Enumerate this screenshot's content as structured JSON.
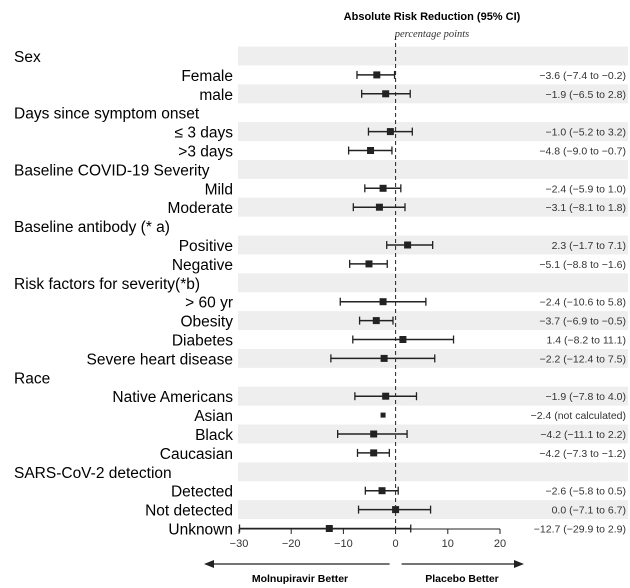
{
  "chart_data": {
    "type": "forest",
    "title": "Absolute Risk Reduction (95% CI)",
    "subtitle": "percentage points",
    "xlim": [
      -30,
      20
    ],
    "xticks": [
      -30,
      -20,
      -10,
      0,
      10,
      20
    ],
    "reference_line": 0,
    "footer_left": "Molnupiravir Better",
    "footer_right": "Placebo Better",
    "rows": [
      {
        "label": "Sex",
        "header": true
      },
      {
        "label": "Female",
        "est": -3.6,
        "lo": -7.4,
        "hi": -0.2,
        "ci_text": "−3.6 (−7.4 to −0.2)"
      },
      {
        "label": "male",
        "est": -1.9,
        "lo": -6.5,
        "hi": 2.8,
        "ci_text": "−1.9 (−6.5 to 2.8)"
      },
      {
        "label": "Days since symptom onset",
        "header": true
      },
      {
        "label": "≤ 3 days",
        "est": -1.0,
        "lo": -5.2,
        "hi": 3.2,
        "ci_text": "−1.0 (−5.2 to 3.2)"
      },
      {
        "label": ">3 days",
        "est": -4.8,
        "lo": -9.0,
        "hi": -0.7,
        "ci_text": "−4.8 (−9.0 to −0.7)"
      },
      {
        "label": "Baseline COVID-19 Severity",
        "header": true
      },
      {
        "label": "Mild",
        "est": -2.4,
        "lo": -5.9,
        "hi": 1.0,
        "ci_text": "−2.4 (−5.9 to 1.0)"
      },
      {
        "label": "Moderate",
        "est": -3.1,
        "lo": -8.1,
        "hi": 1.8,
        "ci_text": "−3.1 (−8.1 to 1.8)"
      },
      {
        "label": "Baseline antibody (* a)",
        "header": true
      },
      {
        "label": "Positive",
        "est": 2.3,
        "lo": -1.7,
        "hi": 7.1,
        "ci_text": "2.3 (−1.7 to 7.1)"
      },
      {
        "label": "Negative",
        "est": -5.1,
        "lo": -8.8,
        "hi": -1.6,
        "ci_text": "−5.1 (−8.8 to −1.6)"
      },
      {
        "label": "Risk factors for severity(*b)",
        "header": true
      },
      {
        "label": "> 60 yr",
        "est": -2.4,
        "lo": -10.6,
        "hi": 5.8,
        "ci_text": "−2.4 (−10.6 to 5.8)"
      },
      {
        "label": "Obesity",
        "est": -3.7,
        "lo": -6.9,
        "hi": -0.5,
        "ci_text": "−3.7 (−6.9 to −0.5)"
      },
      {
        "label": "Diabetes",
        "est": 1.4,
        "lo": -8.2,
        "hi": 11.1,
        "ci_text": "1.4 (−8.2 to 11.1)"
      },
      {
        "label": "Severe heart disease",
        "est": -2.2,
        "lo": -12.4,
        "hi": 7.5,
        "ci_text": "−2.2 (−12.4 to 7.5)"
      },
      {
        "label": "Race",
        "header": true
      },
      {
        "label": "Native Americans",
        "est": -1.9,
        "lo": -7.8,
        "hi": 4.0,
        "ci_text": "−1.9 (−7.8 to 4.0)"
      },
      {
        "label": "Asian",
        "est": -2.4,
        "ci_text": "−2.4 (not calculated)"
      },
      {
        "label": "Black",
        "est": -4.2,
        "lo": -11.1,
        "hi": 2.2,
        "ci_text": "−4.2 (−11.1 to 2.2)"
      },
      {
        "label": "Caucasian",
        "est": -4.2,
        "lo": -7.3,
        "hi": -1.2,
        "ci_text": "−4.2 (−7.3 to −1.2)"
      },
      {
        "label": "SARS-CoV-2 detection",
        "header": true
      },
      {
        "label": "Detected",
        "est": -2.6,
        "lo": -5.8,
        "hi": 0.5,
        "ci_text": "−2.6 (−5.8 to 0.5)"
      },
      {
        "label": "Not detected",
        "est": 0.0,
        "lo": -7.1,
        "hi": 6.7,
        "ci_text": "0.0 (−7.1 to 6.7)"
      },
      {
        "label": "Unknown",
        "est": -12.7,
        "lo": -29.9,
        "hi": 2.9,
        "ci_text": "−12.7 (−29.9 to 2.9)"
      }
    ]
  },
  "colors": {
    "band": "#eeeeee",
    "mark": "#222222",
    "text": "#000000"
  }
}
